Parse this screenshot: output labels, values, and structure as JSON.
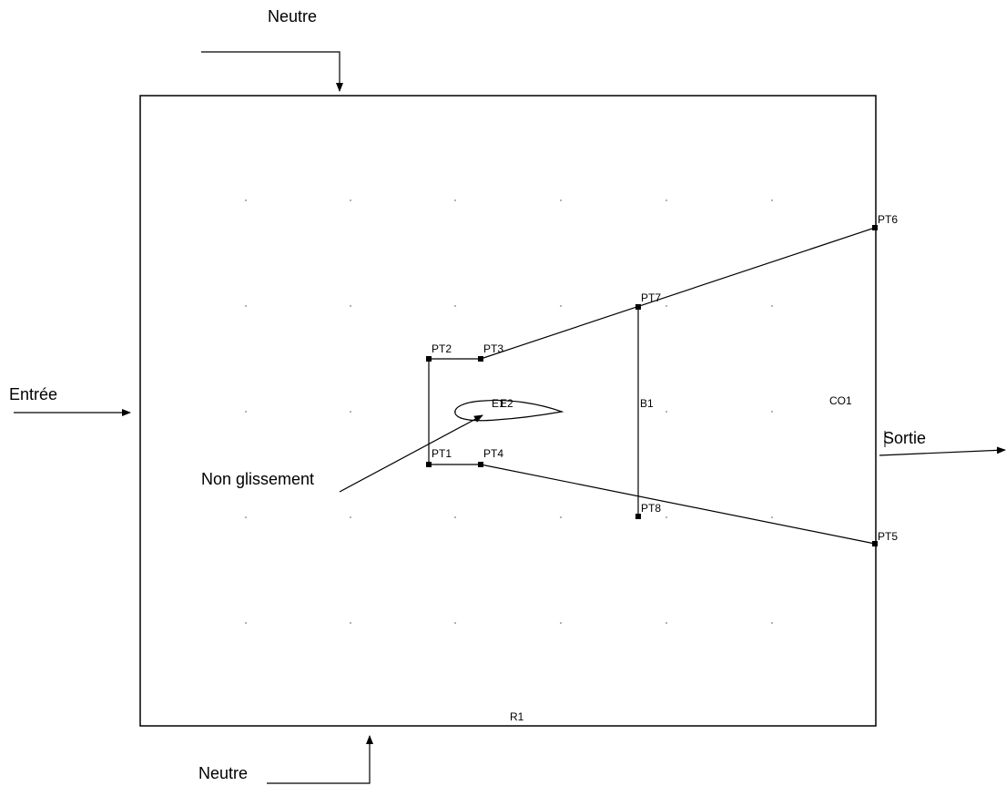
{
  "diagram": {
    "annotations": {
      "neutre_top": "Neutre",
      "neutre_bottom": "Neutre",
      "entree": "Entrée",
      "sortie": "Sortie",
      "non_glissement": "Non glissement"
    },
    "points": {
      "pt1": "PT1",
      "pt2": "PT2",
      "pt3": "PT3",
      "pt4": "PT4",
      "pt5": "PT5",
      "pt6": "PT6",
      "pt7": "PT7",
      "pt8": "PT8"
    },
    "regions": {
      "r1": "R1",
      "co1": "CO1",
      "b1": "B1",
      "e1": "E1",
      "e2": "E2"
    },
    "colors": {
      "stroke": "#000000",
      "grid_dot": "#9a9a9a",
      "background": "#ffffff"
    }
  }
}
